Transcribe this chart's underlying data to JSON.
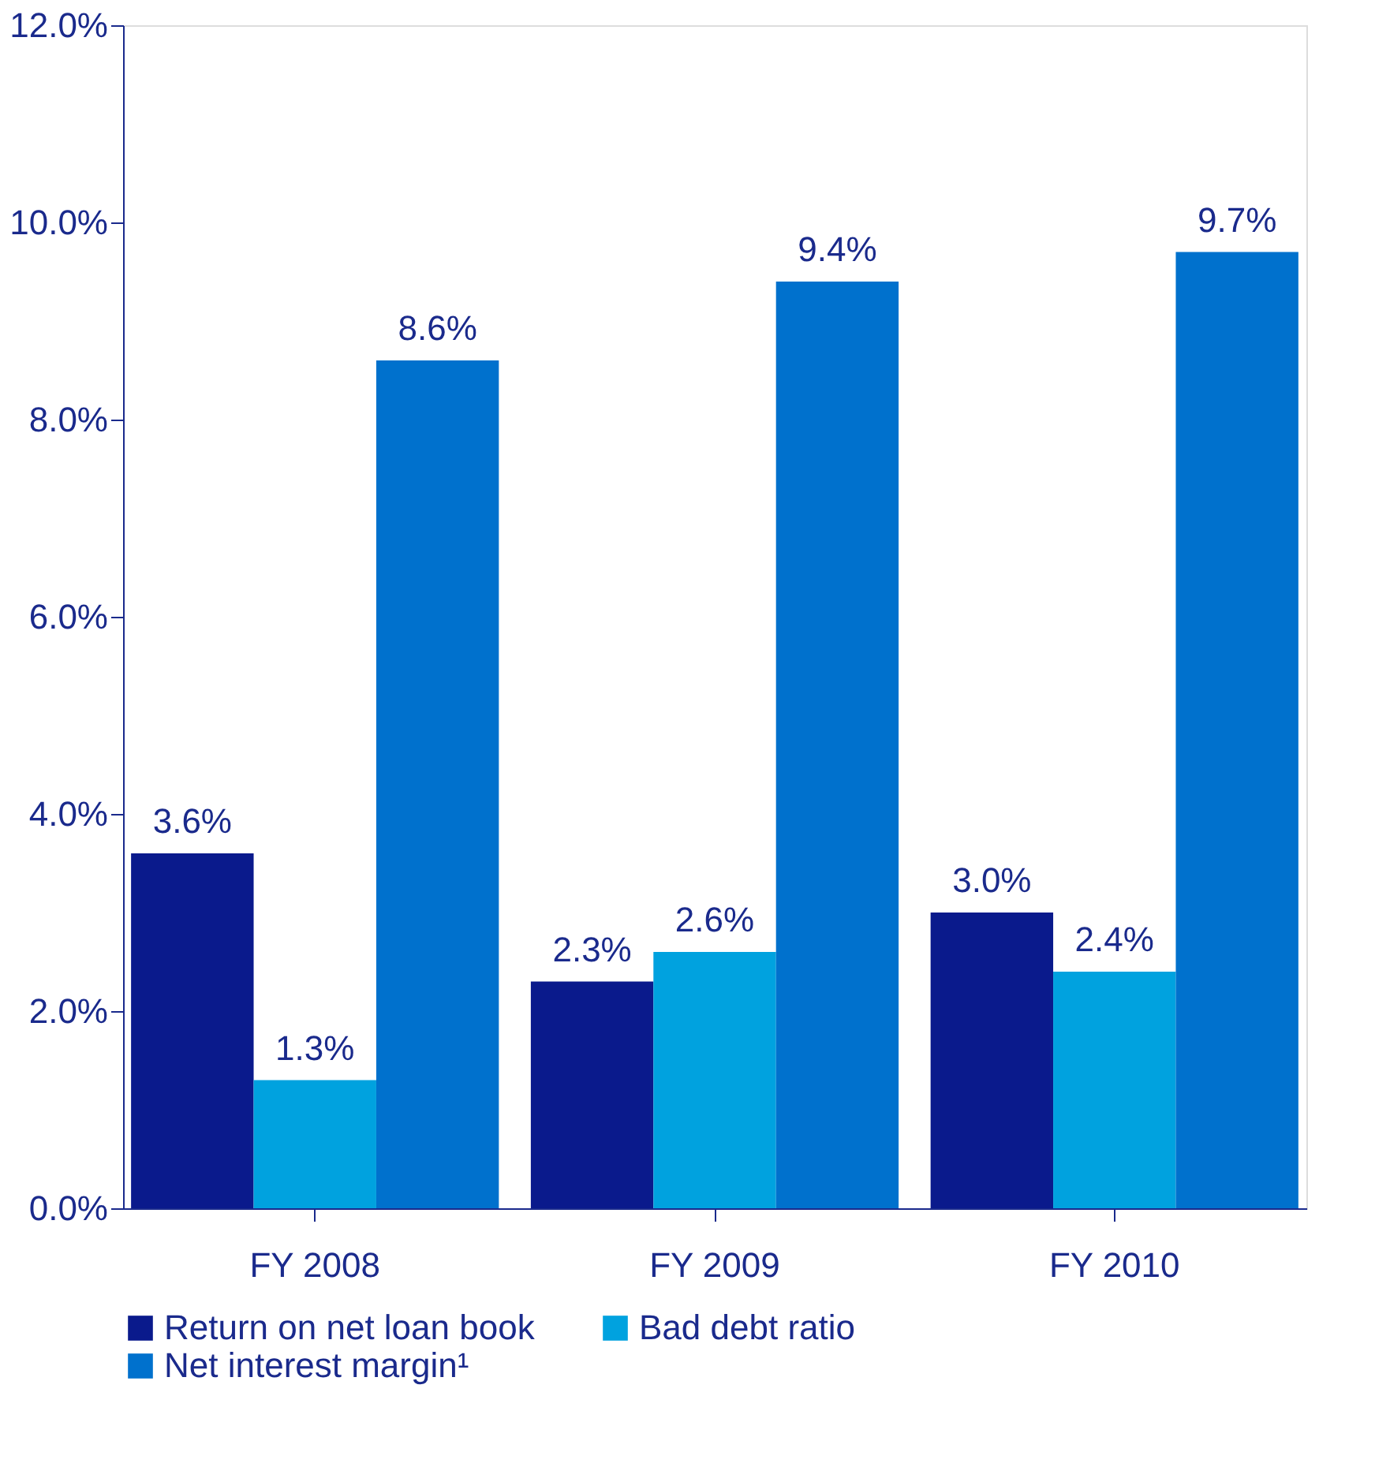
{
  "chart_data": {
    "type": "bar",
    "categories": [
      "FY 2008",
      "FY 2009",
      "FY 2010"
    ],
    "series": [
      {
        "name": "Return on net loan book",
        "color": "#0a1a8c",
        "values": [
          3.6,
          2.3,
          3.0
        ],
        "value_labels": [
          "3.6%",
          "2.3%",
          "3.0%"
        ]
      },
      {
        "name": "Bad debt ratio",
        "color": "#00a2df",
        "values": [
          1.3,
          2.6,
          2.4
        ],
        "value_labels": [
          "1.3%",
          "2.6%",
          "2.4%"
        ]
      },
      {
        "name": "Net interest margin¹",
        "color": "#0071cd",
        "values": [
          8.6,
          9.4,
          9.7
        ],
        "value_labels": [
          "8.6%",
          "9.4%",
          "9.7%"
        ]
      }
    ],
    "ylim": [
      0,
      12
    ],
    "yticks": [
      {
        "value": 0,
        "label": "0.0%"
      },
      {
        "value": 2,
        "label": "2.0%"
      },
      {
        "value": 4,
        "label": "4.0%"
      },
      {
        "value": 6,
        "label": "6.0%"
      },
      {
        "value": 8,
        "label": "8.0%"
      },
      {
        "value": 10,
        "label": "10.0%"
      },
      {
        "value": 12,
        "label": "12.0%"
      }
    ],
    "grid": false,
    "legend": "bottom"
  }
}
